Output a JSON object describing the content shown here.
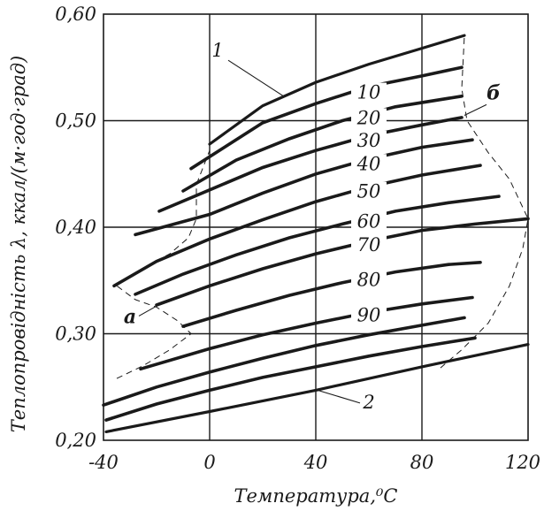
{
  "chart_data": {
    "type": "line",
    "xlabel": "Температура,⁰С",
    "ylabel": "Теплопровідність λ, ккал/(м·год·град)",
    "xlim": [
      -40,
      120
    ],
    "ylim": [
      0.2,
      0.6
    ],
    "x_ticks": [
      "-40",
      "0",
      "40",
      "80",
      "120"
    ],
    "y_ticks": [
      "0,20",
      "0,30",
      "0,40",
      "0,50",
      "0,60"
    ],
    "x_tick_values": [
      -40,
      0,
      40,
      80,
      120
    ],
    "y_tick_values": [
      0.2,
      0.3,
      0.4,
      0.5,
      0.6
    ],
    "grid": true,
    "series": [
      {
        "label": "1",
        "points": [
          [
            0,
            0.478
          ],
          [
            20,
            0.514
          ],
          [
            40,
            0.536
          ],
          [
            60,
            0.553
          ],
          [
            80,
            0.568
          ],
          [
            96,
            0.58
          ]
        ]
      },
      {
        "label": "10",
        "points": [
          [
            -7,
            0.455
          ],
          [
            20,
            0.498
          ],
          [
            40,
            0.516
          ],
          [
            60,
            0.532
          ],
          [
            80,
            0.542
          ],
          [
            95,
            0.55
          ]
        ]
      },
      {
        "label": "20",
        "points": [
          [
            -10,
            0.434
          ],
          [
            10,
            0.463
          ],
          [
            30,
            0.483
          ],
          [
            50,
            0.5
          ],
          [
            70,
            0.513
          ],
          [
            95,
            0.523
          ]
        ]
      },
      {
        "label": "30",
        "points": [
          [
            -19,
            0.415
          ],
          [
            0,
            0.435
          ],
          [
            20,
            0.456
          ],
          [
            40,
            0.472
          ],
          [
            60,
            0.486
          ],
          [
            80,
            0.496
          ],
          [
            95,
            0.503
          ]
        ]
      },
      {
        "label": "40",
        "points": [
          [
            -28,
            0.393
          ],
          [
            0,
            0.412
          ],
          [
            20,
            0.432
          ],
          [
            40,
            0.45
          ],
          [
            60,
            0.464
          ],
          [
            80,
            0.475
          ],
          [
            99,
            0.482
          ]
        ]
      },
      {
        "label": "50",
        "points": [
          [
            -36,
            0.345
          ],
          [
            -20,
            0.368
          ],
          [
            0,
            0.389
          ],
          [
            20,
            0.407
          ],
          [
            40,
            0.424
          ],
          [
            60,
            0.438
          ],
          [
            80,
            0.449
          ],
          [
            102,
            0.458
          ]
        ]
      },
      {
        "label": "60",
        "points": [
          [
            -28,
            0.337
          ],
          [
            -10,
            0.356
          ],
          [
            10,
            0.374
          ],
          [
            30,
            0.39
          ],
          [
            50,
            0.403
          ],
          [
            70,
            0.415
          ],
          [
            90,
            0.423
          ],
          [
            109,
            0.429
          ]
        ]
      },
      {
        "label": "70",
        "points": [
          [
            -20,
            0.327
          ],
          [
            0,
            0.345
          ],
          [
            20,
            0.361
          ],
          [
            40,
            0.375
          ],
          [
            60,
            0.387
          ],
          [
            80,
            0.397
          ],
          [
            100,
            0.403
          ],
          [
            120,
            0.408
          ]
        ]
      },
      {
        "label": "80",
        "points": [
          [
            -10,
            0.307
          ],
          [
            10,
            0.322
          ],
          [
            30,
            0.336
          ],
          [
            50,
            0.348
          ],
          [
            70,
            0.358
          ],
          [
            90,
            0.365
          ],
          [
            102,
            0.367
          ]
        ]
      },
      {
        "label": "90",
        "points": [
          [
            -26,
            0.267
          ],
          [
            0,
            0.286
          ],
          [
            20,
            0.299
          ],
          [
            40,
            0.31
          ],
          [
            60,
            0.32
          ],
          [
            80,
            0.328
          ],
          [
            99,
            0.334
          ]
        ]
      },
      {
        "label": "",
        "points": [
          [
            -40,
            0.233
          ],
          [
            -20,
            0.25
          ],
          [
            0,
            0.264
          ],
          [
            20,
            0.277
          ],
          [
            40,
            0.289
          ],
          [
            60,
            0.299
          ],
          [
            80,
            0.308
          ],
          [
            96,
            0.315
          ]
        ]
      },
      {
        "label": "",
        "points": [
          [
            -39,
            0.219
          ],
          [
            -20,
            0.234
          ],
          [
            0,
            0.247
          ],
          [
            20,
            0.259
          ],
          [
            40,
            0.269
          ],
          [
            60,
            0.279
          ],
          [
            80,
            0.288
          ],
          [
            100,
            0.296
          ]
        ]
      },
      {
        "label": "2",
        "points": [
          [
            -39,
            0.208
          ],
          [
            0,
            0.227
          ],
          [
            40,
            0.247
          ],
          [
            80,
            0.269
          ],
          [
            120,
            0.29
          ]
        ]
      }
    ],
    "boundaries": [
      {
        "label": "а",
        "points": [
          [
            -35,
            0.258
          ],
          [
            -25,
            0.27
          ],
          [
            -15,
            0.285
          ],
          [
            -7,
            0.3
          ],
          [
            -12,
            0.312
          ],
          [
            -20,
            0.325
          ],
          [
            -28,
            0.332
          ],
          [
            -35,
            0.345
          ],
          [
            -25,
            0.362
          ],
          [
            -15,
            0.375
          ],
          [
            -8,
            0.39
          ],
          [
            -5,
            0.408
          ],
          [
            -5,
            0.44
          ],
          [
            0,
            0.472
          ]
        ]
      },
      {
        "label": "б",
        "points": [
          [
            87,
            0.268
          ],
          [
            95,
            0.285
          ],
          [
            105,
            0.31
          ],
          [
            113,
            0.345
          ],
          [
            118,
            0.38
          ],
          [
            120,
            0.408
          ],
          [
            113,
            0.445
          ],
          [
            105,
            0.47
          ],
          [
            97,
            0.5
          ],
          [
            95,
            0.53
          ],
          [
            96,
            0.58
          ]
        ]
      }
    ],
    "annotations": [
      {
        "text": "1",
        "x": 3,
        "y": 0.56
      },
      {
        "text": "а",
        "x": -30,
        "y": 0.31
      },
      {
        "text": "б",
        "x": 107,
        "y": 0.52
      },
      {
        "text": "2",
        "x": 60,
        "y": 0.23
      }
    ]
  }
}
